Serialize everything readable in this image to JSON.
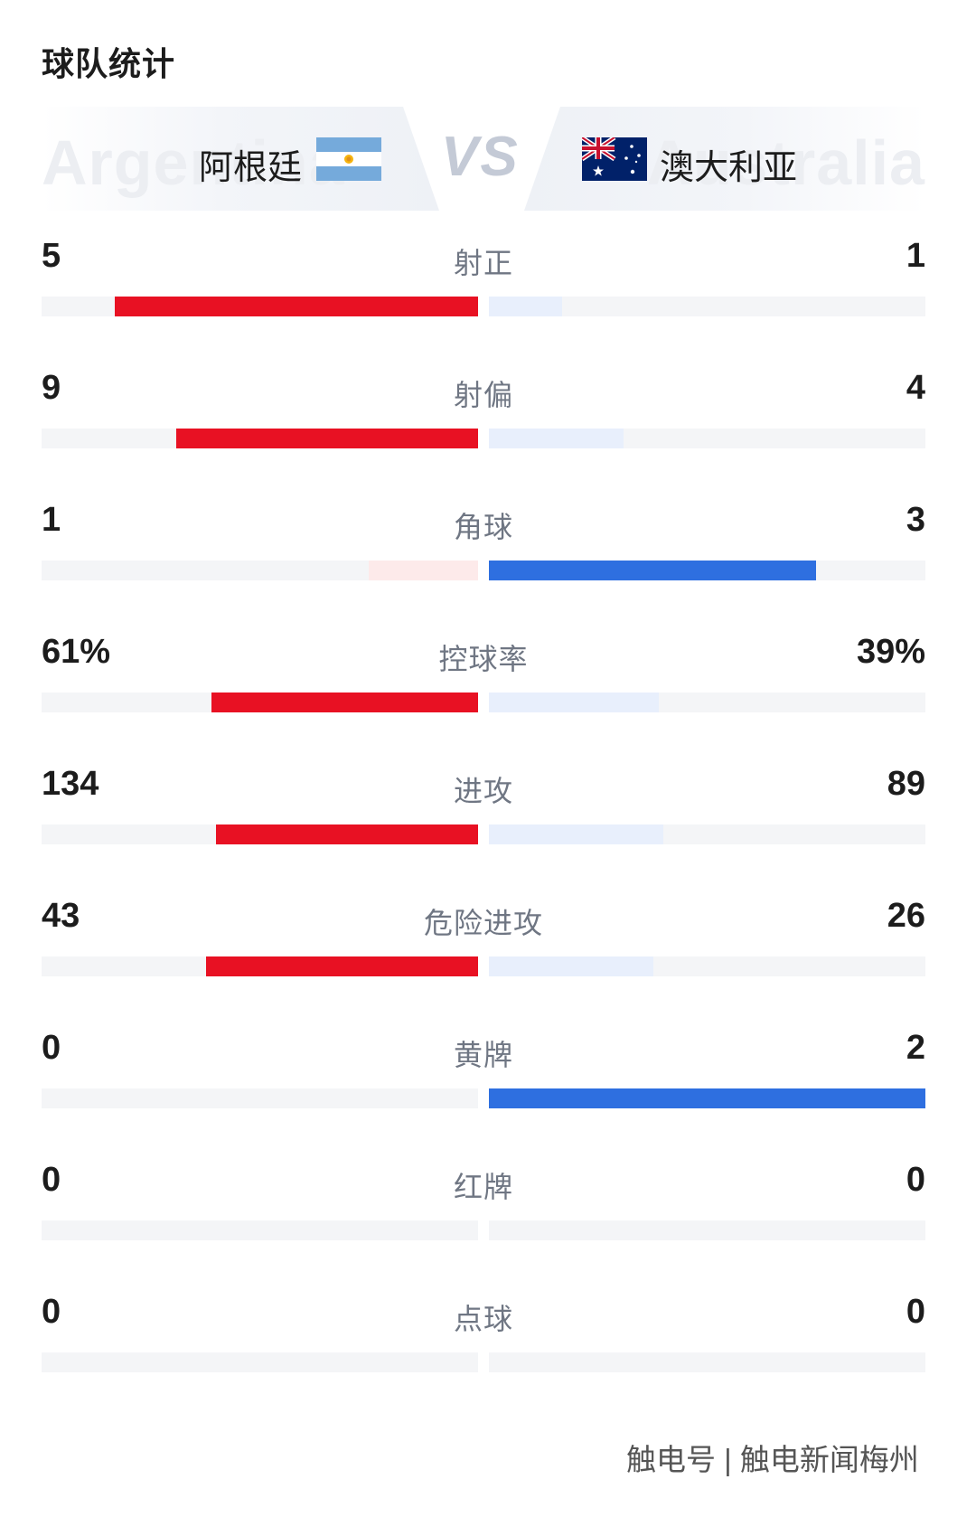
{
  "page": {
    "title": "球队统计"
  },
  "teams": {
    "home": {
      "name": "阿根廷",
      "watermark": "Argentina",
      "flag": "argentina-flag-icon"
    },
    "vs": "VS",
    "away": {
      "name": "澳大利亚",
      "watermark": "Australia",
      "flag": "australia-flag-icon"
    }
  },
  "colors": {
    "home_strong": "#e81123",
    "home_weak": "#fdeaea",
    "away_strong": "#2e6fe0",
    "away_weak": "#e8effc",
    "track": "#f4f5f7"
  },
  "stats": [
    {
      "label": "射正",
      "home": "5",
      "away": "1",
      "home_share": 0.833,
      "away_share": 0.167
    },
    {
      "label": "射偏",
      "home": "9",
      "away": "4",
      "home_share": 0.692,
      "away_share": 0.308
    },
    {
      "label": "角球",
      "home": "1",
      "away": "3",
      "home_share": 0.25,
      "away_share": 0.75
    },
    {
      "label": "控球率",
      "home": "61%",
      "away": "39%",
      "home_share": 0.61,
      "away_share": 0.39
    },
    {
      "label": "进攻",
      "home": "134",
      "away": "89",
      "home_share": 0.601,
      "away_share": 0.399
    },
    {
      "label": "危险进攻",
      "home": "43",
      "away": "26",
      "home_share": 0.623,
      "away_share": 0.377
    },
    {
      "label": "黄牌",
      "home": "0",
      "away": "2",
      "home_share": 0,
      "away_share": 1
    },
    {
      "label": "红牌",
      "home": "0",
      "away": "0",
      "home_share": 0,
      "away_share": 0
    },
    {
      "label": "点球",
      "home": "0",
      "away": "0",
      "home_share": 0,
      "away_share": 0
    }
  ],
  "footer": {
    "watermark": "触电号 | 触电新闻梅州"
  }
}
